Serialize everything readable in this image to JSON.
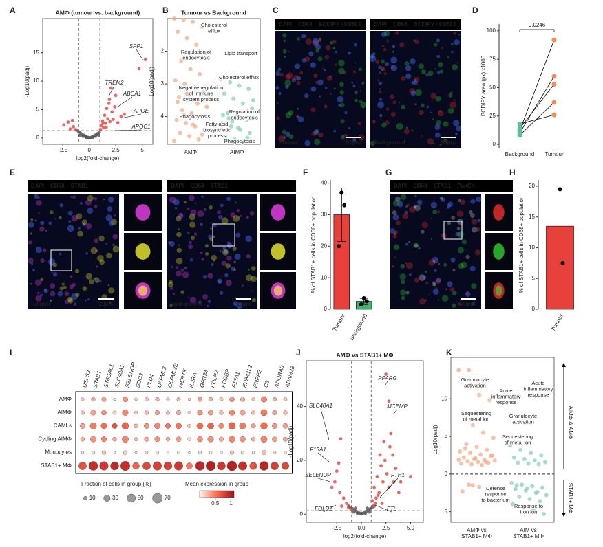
{
  "panel_letters": [
    "A",
    "B",
    "C",
    "D",
    "E",
    "F",
    "G",
    "H",
    "I",
    "J",
    "K"
  ],
  "images": [
    {
      "channels": [
        {
          "text": "DAPI",
          "color": "#4a6cff"
        },
        {
          "text": "CD68",
          "color": "#ff3030"
        },
        {
          "text": "BODIPY 493/503",
          "color": "#33dd33"
        }
      ],
      "samples": [
        "Tumour",
        "Background"
      ],
      "scale_bar": "50µm"
    },
    {
      "channels": [
        {
          "text": "DAPI",
          "color": "#4a6cff"
        },
        {
          "text": "CD68",
          "color": "#ff44ff"
        },
        {
          "text": "STAB1",
          "color": "#ffff33"
        }
      ],
      "samples": [
        "Tumour",
        "Background"
      ],
      "scale_bar": "20µm"
    },
    {
      "channels": [
        {
          "text": "DAPI",
          "color": "#4a6cff"
        },
        {
          "text": "CD68",
          "color": "#ff3030"
        },
        {
          "text": "STAB1",
          "color": "#33dd33"
        },
        {
          "text": "PanCK",
          "color": "#dddddd"
        }
      ],
      "scale_bar": "20µm"
    }
  ],
  "chart_data": [
    {
      "type": "scatter",
      "title": "AMΦ (tumour vs. background)",
      "x_label": "log2(fold-change)",
      "y_label": "-Log10(padj)",
      "xlim": [
        -4.4,
        6.0
      ],
      "ylim": [
        -1.1,
        21
      ],
      "xticks": [
        -2.5,
        0,
        2.5,
        5
      ],
      "yticks": [
        0,
        5,
        10,
        15
      ],
      "fc_cutoff": [
        -1,
        1
      ],
      "padj_cutoff": 1.3,
      "series": [
        {
          "color": "#555555",
          "x": [
            -1.2,
            -1.0,
            -0.85,
            -0.7,
            -0.55,
            -0.4,
            -0.25,
            -0.1,
            0.05,
            0.2,
            0.35,
            0.5,
            0.65,
            0.8,
            0.95,
            -0.6,
            -0.3,
            0,
            0.3,
            0.6,
            -0.9,
            0.9
          ],
          "y": [
            1.4,
            1.1,
            0.9,
            0.7,
            0.5,
            0.35,
            0.2,
            0.1,
            0.05,
            0.15,
            0.3,
            0.45,
            0.6,
            0.8,
            1.0,
            0.3,
            0.1,
            0.02,
            0.1,
            0.3,
            0.4,
            0.5
          ]
        },
        {
          "color": "#e8413b",
          "x": [
            -2.4,
            -2.0,
            -1.8,
            -1.5,
            -1.3,
            -1.6,
            1.05,
            1.15,
            1.25,
            1.35,
            1.45,
            1.55,
            1.65,
            1.75,
            1.85,
            1.95,
            2.05,
            2.15,
            2.25,
            2.4,
            2.5,
            2.7,
            3.0,
            3.3,
            4.7,
            5.3,
            1.3,
            1.6,
            1.9
          ],
          "y": [
            2.3,
            2.8,
            1.6,
            2.0,
            1.5,
            3.1,
            1.5,
            2.2,
            3.0,
            1.8,
            4.0,
            2.6,
            5.2,
            3.4,
            6.1,
            2.9,
            8.8,
            4.6,
            3.3,
            5.5,
            7.5,
            2.7,
            3.8,
            4.2,
            12.2,
            13.8,
            2.6,
            1.9,
            6.8
          ]
        }
      ],
      "annotations": [
        "SPP1",
        "TREM2",
        "ABCA1",
        "APOE",
        "APOC1"
      ]
    },
    {
      "type": "strip",
      "title": "Tumour vs Background",
      "y_label": "Log10(padj)",
      "ylim": [
        4.85,
        1.0
      ],
      "yticks": [
        2,
        3,
        4
      ],
      "categories": [
        "AMΦ",
        "AIMΦ"
      ],
      "groups": [
        {
          "color": "#f4a582",
          "values": [
            1.0,
            1.05,
            1.1,
            1.25,
            1.4,
            1.6,
            1.8,
            2.05,
            2.3,
            2.55,
            2.7,
            2.9,
            3.0,
            3.1,
            3.25,
            3.4,
            3.5,
            3.6,
            3.7,
            3.8,
            3.9,
            4.0,
            4.1,
            4.2,
            4.3,
            4.4,
            4.5,
            4.6,
            4.7,
            4.75,
            3.95,
            4.25,
            4.55,
            3.55,
            3.3
          ]
        },
        {
          "color": "#80cdb0",
          "values": [
            2.85,
            2.95,
            3.05,
            3.15,
            3.3,
            3.45,
            3.6,
            3.75,
            3.9,
            4.0,
            4.1,
            4.2,
            4.3,
            4.4,
            4.5,
            4.6,
            4.7,
            4.75,
            3.5,
            4.05,
            4.35,
            4.65,
            3.95,
            4.15
          ]
        }
      ],
      "annotations": [
        [
          "Cholesterol",
          "efflux"
        ],
        [
          "Regulation of",
          "endocytosis"
        ],
        [
          "Lipid transport"
        ],
        [
          "Cholesterol efflux"
        ],
        [
          "Negative regulation",
          "of immune",
          "system process"
        ],
        [
          "Regulation of",
          "endocytosis"
        ],
        [
          "Phagocytosis"
        ],
        [
          "Fatty acid",
          "biosynthetic",
          "process"
        ],
        [
          "Phagocytosis"
        ]
      ]
    },
    {
      "type": "paired",
      "y_label": "BODIPY area (px) x1000",
      "ylim": [
        -3,
        106
      ],
      "yticks": [
        0,
        25,
        50,
        75,
        100
      ],
      "categories": [
        "Background",
        "Tumour"
      ],
      "colors": [
        "#5cbf9f",
        "#f28e5c"
      ],
      "series": [
        {
          "values": [
            12,
            92
          ]
        },
        {
          "values": [
            10,
            60
          ]
        },
        {
          "values": [
            14,
            53
          ]
        },
        {
          "values": [
            8,
            37
          ]
        },
        {
          "values": [
            18,
            26
          ]
        }
      ],
      "annotation": "0.0246"
    },
    {
      "type": "bar",
      "y_label": "% of STAB1+ cells in CD68+ population",
      "ylim": [
        0,
        41
      ],
      "yticks": [
        0,
        10,
        20,
        30,
        40
      ],
      "categories": [
        "Tumour",
        "Background"
      ],
      "colors": [
        "#e8413b",
        "#3cb371"
      ],
      "values": [
        30,
        2.5
      ],
      "errors": [
        8.5,
        1.0
      ],
      "points": [
        [
          37,
          33,
          20
        ],
        [
          3.5,
          2.5,
          1.5
        ]
      ]
    },
    {
      "type": "bar",
      "y_label": "% of STAB1+ cells in CD68+ population",
      "ylim": [
        0,
        21
      ],
      "yticks": [
        0,
        5,
        10,
        15,
        20
      ],
      "categories": [
        "Tumour"
      ],
      "colors": [
        "#e8413b"
      ],
      "values": [
        13.5
      ],
      "points": [
        [
          19.5,
          7.5
        ]
      ]
    },
    {
      "type": "dotplot",
      "genes": [
        "USP53",
        "STAB1",
        "ST6GAL1",
        "SLC40A1",
        "SELENOP",
        "SDC3",
        "PLD4",
        "OLFML3",
        "OLFML2B",
        "MERTK",
        "IL2RA",
        "GPR34",
        "FOLR2",
        "FCGBP",
        "F13A1",
        "EPB41L2",
        "ENPP2",
        "C3",
        "ADORA3",
        "ADAM28"
      ],
      "groups": [
        "AMΦ",
        "AIMΦ",
        "CAMLs",
        "Cycling AIMΦ",
        "Monocytes",
        "STAB1+ MΦ"
      ],
      "fraction": [
        [
          8,
          12,
          15,
          5,
          20,
          6,
          10,
          12,
          8,
          10,
          5,
          15,
          12,
          10,
          18,
          15,
          8,
          25,
          12,
          10
        ],
        [
          10,
          20,
          18,
          10,
          25,
          8,
          12,
          15,
          10,
          15,
          6,
          20,
          20,
          12,
          22,
          20,
          10,
          30,
          15,
          12
        ],
        [
          20,
          30,
          25,
          20,
          35,
          12,
          20,
          25,
          20,
          25,
          10,
          30,
          30,
          20,
          35,
          30,
          15,
          35,
          20,
          18
        ],
        [
          12,
          25,
          20,
          12,
          30,
          10,
          15,
          20,
          12,
          18,
          8,
          22,
          25,
          15,
          28,
          22,
          12,
          30,
          18,
          14
        ],
        [
          5,
          8,
          10,
          3,
          12,
          4,
          6,
          8,
          5,
          6,
          3,
          8,
          6,
          5,
          10,
          8,
          5,
          15,
          6,
          5
        ],
        [
          45,
          60,
          55,
          50,
          65,
          35,
          45,
          55,
          50,
          55,
          30,
          60,
          65,
          50,
          70,
          55,
          40,
          60,
          45,
          40
        ]
      ],
      "expression": [
        [
          0.2,
          0.3,
          0.35,
          0.1,
          0.4,
          0.15,
          0.2,
          0.3,
          0.2,
          0.25,
          0.1,
          0.35,
          0.3,
          0.2,
          0.4,
          0.3,
          0.2,
          0.45,
          0.3,
          0.2
        ],
        [
          0.25,
          0.35,
          0.4,
          0.15,
          0.45,
          0.2,
          0.25,
          0.35,
          0.25,
          0.3,
          0.15,
          0.4,
          0.35,
          0.25,
          0.45,
          0.35,
          0.25,
          0.5,
          0.35,
          0.25
        ],
        [
          0.35,
          0.5,
          0.55,
          0.7,
          0.6,
          0.3,
          0.4,
          0.45,
          0.5,
          0.5,
          0.2,
          0.55,
          0.6,
          0.45,
          0.6,
          0.5,
          0.35,
          0.55,
          0.4,
          0.35
        ],
        [
          0.3,
          0.4,
          0.45,
          0.3,
          0.45,
          0.25,
          0.3,
          0.4,
          0.3,
          0.35,
          0.15,
          0.4,
          0.4,
          0.3,
          0.45,
          0.4,
          0.3,
          0.45,
          0.35,
          0.3
        ],
        [
          0.1,
          0.15,
          0.2,
          0.05,
          0.2,
          0.1,
          0.15,
          0.15,
          0.1,
          0.1,
          0.05,
          0.15,
          0.1,
          0.1,
          0.2,
          0.15,
          0.1,
          0.25,
          0.15,
          0.1
        ],
        [
          0.7,
          0.9,
          0.85,
          0.95,
          0.9,
          0.6,
          0.75,
          0.8,
          0.8,
          0.85,
          0.5,
          0.95,
          1.0,
          0.85,
          1.0,
          0.9,
          0.7,
          0.95,
          0.8,
          0.75
        ]
      ],
      "size_legend": {
        "title": "Fraction of cells in group (%)",
        "values": [
          10,
          30,
          50,
          70
        ]
      },
      "color_legend": {
        "title": "Mean expression in group",
        "ticks": [
          0.5,
          1
        ]
      },
      "color_scale": [
        "#fff5f0",
        "#fb6a4a",
        "#a50f15"
      ],
      "clim": [
        0,
        1.1
      ]
    },
    {
      "type": "scatter",
      "title": "AMΦ vs STAB1+ MΦ",
      "x_label": "log2(fold-change)",
      "y_label": "-Log10(padj)",
      "xlim": [
        -5.6,
        6.3
      ],
      "ylim": [
        -3,
        57
      ],
      "xticks": [
        -2.5,
        {
          "value": 0,
          "label": "0.0"
        },
        2.5,
        {
          "value": 5,
          "label": "5.0"
        }
      ],
      "yticks": [
        0,
        20,
        40
      ],
      "fc_cutoff": [
        -1,
        1
      ],
      "padj_cutoff": 1.3,
      "series": [
        {
          "color": "#555555",
          "x": [
            -1.3,
            -1.1,
            -0.9,
            -0.7,
            -0.5,
            -0.3,
            -0.1,
            0.1,
            0.3,
            0.5,
            0.7,
            0.9,
            1.1,
            1.3,
            -0.8,
            -0.4,
            0,
            0.4,
            0.8,
            -0.6,
            0.6
          ],
          "y": [
            3.0,
            2.5,
            2.0,
            1.5,
            1.0,
            0.6,
            0.3,
            0.3,
            0.6,
            1.0,
            1.5,
            2.0,
            2.5,
            3.0,
            0.8,
            0.3,
            0.1,
            0.3,
            0.8,
            2.2,
            2.2
          ]
        },
        {
          "color": "#e8413b",
          "x": [
            -3.0,
            -2.7,
            -2.5,
            -2.3,
            -2.2,
            -2.1,
            -2.0,
            -1.8,
            -1.5,
            -1.3,
            -1.1,
            1.1,
            1.2,
            1.3,
            1.5,
            1.6,
            1.8,
            1.9,
            2.0,
            2.1,
            2.2,
            2.3,
            2.4,
            2.5,
            2.6,
            2.8,
            2.8,
            2.9,
            3.0,
            3.2,
            3.3,
            3.5,
            3.8,
            4.0,
            5.0,
            1.4,
            1.7
          ],
          "y": [
            10,
            12,
            16,
            19,
            8,
            28,
            3,
            6,
            4,
            2.5,
            2,
            5,
            3,
            10,
            6,
            14,
            8,
            22,
            18,
            4,
            12,
            27,
            20,
            52,
            15,
            42,
            10,
            25,
            30,
            22,
            12,
            17,
            8,
            12,
            14,
            4,
            7
          ]
        }
      ],
      "annotations": [
        "PPARG",
        "MCEMP",
        "SLC40A1",
        "F13A1",
        "SELENOP",
        "FOLR2",
        "FTH1",
        "FTL"
      ]
    },
    {
      "type": "strip",
      "y_label": "Log10(padj)",
      "ylim": [
        -6.4,
        15.5
      ],
      "yticks": [
        10,
        5,
        0,
        {
          "value": -5,
          "label": "5"
        }
      ],
      "categories": [
        [
          "AMΦ vs",
          "STAB1+ MΦ"
        ],
        [
          "AIM vs",
          "STAB1+ MΦ"
        ]
      ],
      "groups": [
        {
          "color": "#f4a582",
          "values": [
            13.8,
            13.8,
            10.5,
            9.8,
            8.0,
            6.5,
            5.5,
            4.8,
            4.0,
            3.6,
            3.2,
            3.0,
            2.8,
            2.6,
            2.4,
            2.2,
            2.0,
            1.9,
            1.8,
            1.7,
            1.6,
            1.5,
            1.4,
            1.3,
            1.2,
            2.5,
            3.4,
            2.1,
            1.6,
            1.9,
            -1.4,
            -1.7,
            -2.0,
            -2.3,
            -1.5
          ]
        },
        {
          "color": "#80cdb0",
          "values": [
            3.8,
            3.2,
            2.8,
            2.5,
            2.2,
            2.0,
            1.8,
            1.6,
            1.5,
            1.4,
            1.3,
            -1.2,
            -1.4,
            -1.6,
            -1.8,
            -2.0,
            -2.2,
            -2.5,
            -2.8,
            -3.0,
            -3.3,
            -3.6,
            -4.0,
            -4.4,
            -4.8,
            -5.3,
            -1.5,
            -1.9,
            -2.4
          ]
        }
      ],
      "annotations": [
        [
          "Granulocyte",
          "activation"
        ],
        [
          "Acute",
          "inflammatory",
          "response"
        ],
        [
          "Acute",
          "inflammatory",
          "response"
        ],
        [
          "Sequestering",
          "of metal ion"
        ],
        [
          "Granulocyte",
          "activation"
        ],
        [
          "Sequestering",
          "of metal ion"
        ],
        [
          "Defense",
          "response",
          "to bacterium"
        ],
        [
          "Response to",
          "iron ion"
        ]
      ],
      "side_labels": [
        "AIMΦ & AMΦ",
        "STAB1+ MΦ"
      ]
    }
  ]
}
